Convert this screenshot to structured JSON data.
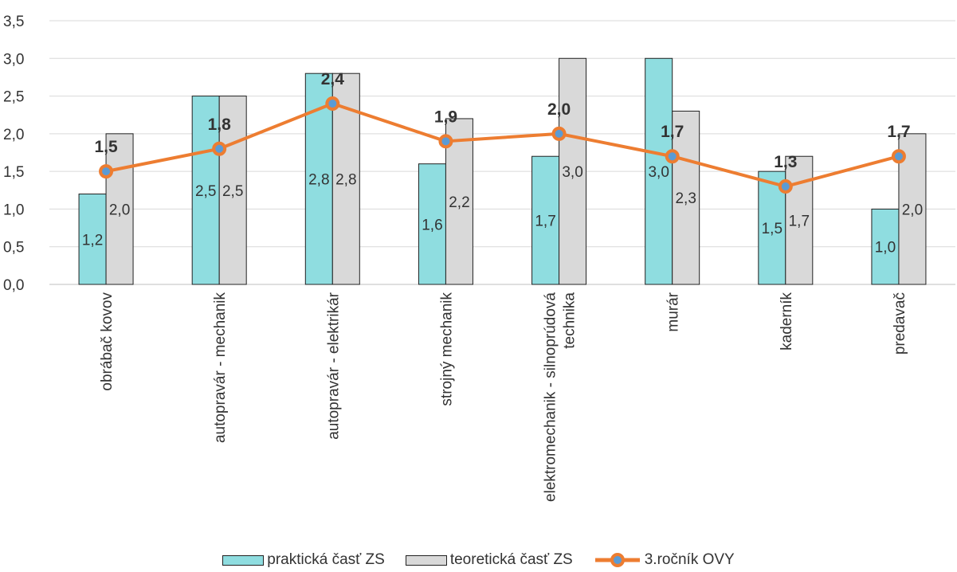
{
  "chart_data": {
    "type": "bar",
    "title": "",
    "xlabel": "",
    "ylabel": "",
    "ylim": [
      0,
      3.5
    ],
    "yticks": [
      "0,0",
      "0,5",
      "1,0",
      "1,5",
      "2,0",
      "2,5",
      "3,0",
      "3,5"
    ],
    "ytick_values": [
      0,
      0.5,
      1,
      1.5,
      2,
      2.5,
      3,
      3.5
    ],
    "grid": true,
    "legend_position": "bottom",
    "categories": [
      [
        "obrábač kovov"
      ],
      [
        "autopravár - mechanik"
      ],
      [
        "autopravár - elektrikár"
      ],
      [
        "strojný mechanik"
      ],
      [
        "elektromechanik - silnoprúdová",
        "technika"
      ],
      [
        "murár"
      ],
      [
        "kaderník"
      ],
      [
        "predavač"
      ]
    ],
    "series": [
      {
        "name": "praktická časť ZS",
        "kind": "bar",
        "color": "#8fdde0",
        "values": [
          1.2,
          2.5,
          2.8,
          1.6,
          1.7,
          3.0,
          1.5,
          1.0
        ],
        "labels": [
          "1,2",
          "2,5",
          "2,8",
          "1,6",
          "1,7",
          "3,0",
          "1,5",
          "1,0"
        ]
      },
      {
        "name": "teoretická časť ZS",
        "kind": "bar",
        "color": "#d9d9d9",
        "values": [
          2.0,
          2.5,
          2.8,
          2.2,
          3.0,
          2.3,
          1.7,
          2.0
        ],
        "labels": [
          "2,0",
          "2,5",
          "2,8",
          "2,2",
          "3,0",
          "2,3",
          "1,7",
          "2,0"
        ]
      },
      {
        "name": "3.ročník OVY",
        "kind": "line",
        "color": "#ed7d31",
        "marker_color": "#5b9bd5",
        "values": [
          1.5,
          1.8,
          2.4,
          1.9,
          2.0,
          1.7,
          1.3,
          1.7
        ],
        "labels": [
          "1,5",
          "1,8",
          "2,4",
          "1,9",
          "2,0",
          "1,7",
          "1,3",
          "1,7"
        ]
      }
    ]
  }
}
